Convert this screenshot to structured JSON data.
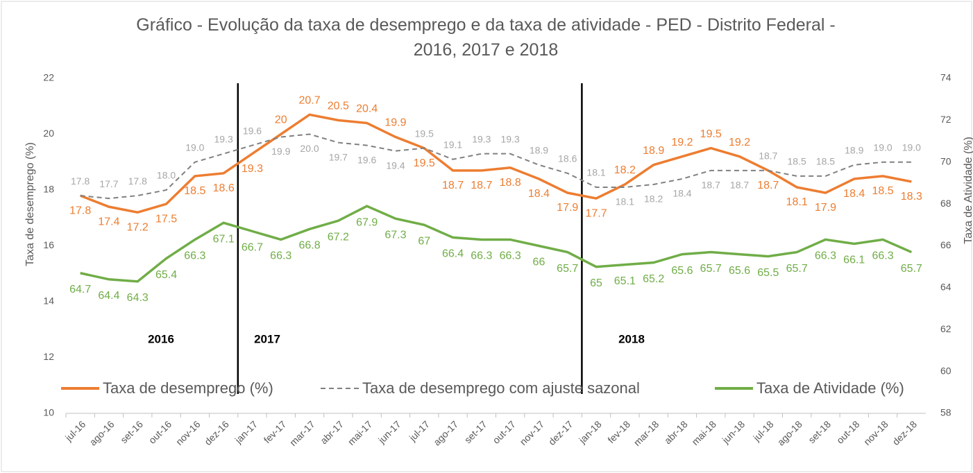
{
  "chart_data": {
    "type": "line",
    "title": "Gráfico - Evolução da taxa de desemprego e da taxa de atividade - PED - Distrito Federal - 2016, 2017 e 2018",
    "ylabel": "Taxa de desemprego (%)",
    "y2label": "Taxa de Atividade (%)",
    "categories": [
      "jul-16",
      "ago-16",
      "set-16",
      "out-16",
      "nov-16",
      "dez-16",
      "jan-17",
      "fev-17",
      "mar-17",
      "abr-17",
      "mai-17",
      "jun-17",
      "jul-17",
      "ago-17",
      "set-17",
      "out-17",
      "nov-17",
      "dez-17",
      "jan-18",
      "fev-18",
      "mar-18",
      "abr-18",
      "mai-18",
      "jun-18",
      "jul-18",
      "ago-18",
      "set-18",
      "out-18",
      "nov-18",
      "dez-18"
    ],
    "series": [
      {
        "name": "Taxa de desemprego (%)",
        "color": "#ed7d31",
        "dash": false,
        "values": [
          17.8,
          17.4,
          17.2,
          17.5,
          18.5,
          18.6,
          19.3,
          20,
          20.7,
          20.5,
          20.4,
          19.9,
          19.5,
          18.7,
          18.7,
          18.8,
          18.4,
          17.9,
          17.7,
          18.2,
          18.9,
          19.2,
          19.5,
          19.2,
          18.7,
          18.1,
          17.9,
          18.4,
          18.5,
          18.3
        ]
      },
      {
        "name": "Taxa de desemprego com ajuste sazonal",
        "color": "#808080",
        "dash": true,
        "values": [
          17.8,
          17.7,
          17.8,
          18,
          19,
          19.3,
          19.6,
          19.9,
          20,
          19.7,
          19.6,
          19.4,
          19.5,
          19.1,
          19.3,
          19.3,
          18.9,
          18.6,
          18.1,
          18.1,
          18.2,
          18.4,
          18.7,
          18.7,
          18.7,
          18.5,
          18.5,
          18.9,
          19,
          19
        ],
        "value_labels": [
          "17.8",
          "17.7",
          "17.8",
          "18.0",
          "19.0",
          "19.3",
          "19.6",
          "19.9",
          "20.0",
          "19.7",
          "19.6",
          "19.4",
          "19.5",
          "19.1",
          "19.3",
          "19.3",
          "18.9",
          "18.6",
          "18.1",
          "18.1",
          "18.2",
          "18.4",
          "18.7",
          "18.7",
          "18.7",
          "18.5",
          "18.5",
          "18.9",
          "19.0",
          "19.0"
        ]
      },
      {
        "name": "Taxa de Atividade (%)",
        "color": "#70ad47",
        "dash": false,
        "axis": "y2",
        "values": [
          64.7,
          64.4,
          64.3,
          65.4,
          66.3,
          67.1,
          66.7,
          66.3,
          66.8,
          67.2,
          67.9,
          67.3,
          67,
          66.4,
          66.3,
          66.3,
          66,
          65.7,
          65,
          65.1,
          65.2,
          65.6,
          65.7,
          65.6,
          65.5,
          65.7,
          66.3,
          66.1,
          66.3,
          65.7
        ]
      }
    ],
    "ylim": [
      10,
      22
    ],
    "yticks": [
      10,
      12,
      14,
      16,
      18,
      20,
      22
    ],
    "y2lim": [
      58,
      74
    ],
    "y2ticks": [
      58,
      60,
      62,
      64,
      66,
      68,
      70,
      72,
      74
    ],
    "grid": false,
    "annotations": [
      "2016",
      "2017",
      "2018"
    ]
  }
}
